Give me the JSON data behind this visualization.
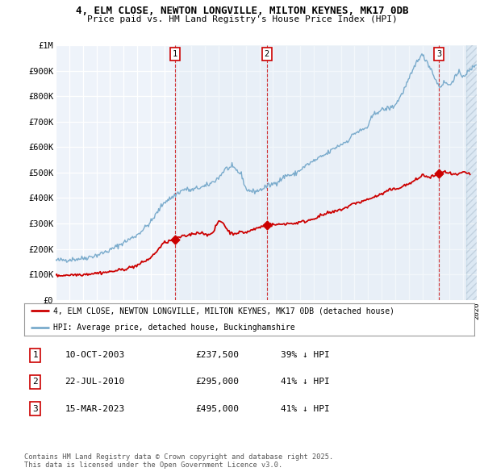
{
  "title1": "4, ELM CLOSE, NEWTON LONGVILLE, MILTON KEYNES, MK17 0DB",
  "title2": "Price paid vs. HM Land Registry's House Price Index (HPI)",
  "ylabel_ticks": [
    "£0",
    "£100K",
    "£200K",
    "£300K",
    "£400K",
    "£500K",
    "£600K",
    "£700K",
    "£800K",
    "£900K",
    "£1M"
  ],
  "ytick_values": [
    0,
    100000,
    200000,
    300000,
    400000,
    500000,
    600000,
    700000,
    800000,
    900000,
    1000000
  ],
  "xlim": [
    1995,
    2026
  ],
  "ylim": [
    0,
    1000000
  ],
  "legend_line1": "4, ELM CLOSE, NEWTON LONGVILLE, MILTON KEYNES, MK17 0DB (detached house)",
  "legend_line2": "HPI: Average price, detached house, Buckinghamshire",
  "sale1_date": "10-OCT-2003",
  "sale1_price": 237500,
  "sale1_pct": "39% ↓ HPI",
  "sale1_year": 2003.78,
  "sale2_date": "22-JUL-2010",
  "sale2_price": 295000,
  "sale2_pct": "41% ↓ HPI",
  "sale2_year": 2010.55,
  "sale3_date": "15-MAR-2023",
  "sale3_price": 495000,
  "sale3_pct": "41% ↓ HPI",
  "sale3_year": 2023.21,
  "footer": "Contains HM Land Registry data © Crown copyright and database right 2025.\nThis data is licensed under the Open Government Licence v3.0.",
  "red_color": "#cc0000",
  "blue_color": "#7aabcc",
  "bg_color": "#deeaf4",
  "chart_bg": "#eef3fa",
  "hpi_anchors_x": [
    1995,
    1996,
    1997,
    1998,
    1999,
    2000,
    2001,
    2002,
    2003,
    2003.5,
    2004,
    2004.5,
    2005,
    2005.5,
    2006,
    2006.5,
    2007,
    2007.5,
    2008,
    2008.3,
    2008.7,
    2009,
    2009.5,
    2010,
    2010.5,
    2011,
    2011.5,
    2012,
    2012.5,
    2013,
    2013.5,
    2014,
    2014.5,
    2015,
    2015.5,
    2016,
    2016.5,
    2017,
    2017.5,
    2018,
    2018.3,
    2018.7,
    2019,
    2019.3,
    2019.7,
    2020,
    2020.5,
    2021,
    2021.3,
    2021.7,
    2022,
    2022.3,
    2022.5,
    2022.7,
    2023,
    2023.3,
    2023.5,
    2023.7,
    2024,
    2024.3,
    2024.7,
    2025,
    2025.5,
    2026
  ],
  "hpi_anchors_y": [
    155000,
    158000,
    163000,
    175000,
    195000,
    225000,
    255000,
    305000,
    385000,
    400000,
    420000,
    435000,
    430000,
    440000,
    445000,
    460000,
    480000,
    515000,
    520000,
    510000,
    490000,
    435000,
    425000,
    430000,
    445000,
    455000,
    470000,
    490000,
    490000,
    510000,
    530000,
    545000,
    560000,
    575000,
    595000,
    610000,
    625000,
    655000,
    665000,
    680000,
    720000,
    740000,
    745000,
    750000,
    755000,
    765000,
    810000,
    865000,
    900000,
    950000,
    960000,
    940000,
    920000,
    900000,
    860000,
    835000,
    850000,
    855000,
    840000,
    870000,
    890000,
    880000,
    900000,
    930000
  ],
  "red_anchors_x": [
    1995,
    1996,
    1997,
    1998,
    1999,
    2000,
    2001,
    2002,
    2003,
    2003.78,
    2004,
    2004.5,
    2005,
    2005.5,
    2006,
    2006.5,
    2007,
    2007.3,
    2007.7,
    2008,
    2008.5,
    2009,
    2009.5,
    2010,
    2010.55,
    2011,
    2011.5,
    2012,
    2012.5,
    2013,
    2013.5,
    2014,
    2014.5,
    2015,
    2015.5,
    2016,
    2016.5,
    2017,
    2017.5,
    2018,
    2018.5,
    2019,
    2019.5,
    2020,
    2020.5,
    2021,
    2021.5,
    2022,
    2022.3,
    2022.5,
    2023,
    2023.21,
    2023.5,
    2024,
    2024.5,
    2025,
    2025.5
  ],
  "red_anchors_y": [
    95000,
    98000,
    100000,
    105000,
    110000,
    120000,
    135000,
    165000,
    225000,
    237500,
    245000,
    250000,
    258000,
    265000,
    260000,
    255000,
    310000,
    305000,
    270000,
    260000,
    265000,
    265000,
    275000,
    285000,
    295000,
    295000,
    296000,
    300000,
    300000,
    305000,
    310000,
    320000,
    330000,
    340000,
    345000,
    355000,
    365000,
    380000,
    385000,
    395000,
    405000,
    415000,
    430000,
    435000,
    445000,
    455000,
    470000,
    490000,
    485000,
    480000,
    490000,
    495000,
    505000,
    495000,
    490000,
    500000,
    495000
  ]
}
